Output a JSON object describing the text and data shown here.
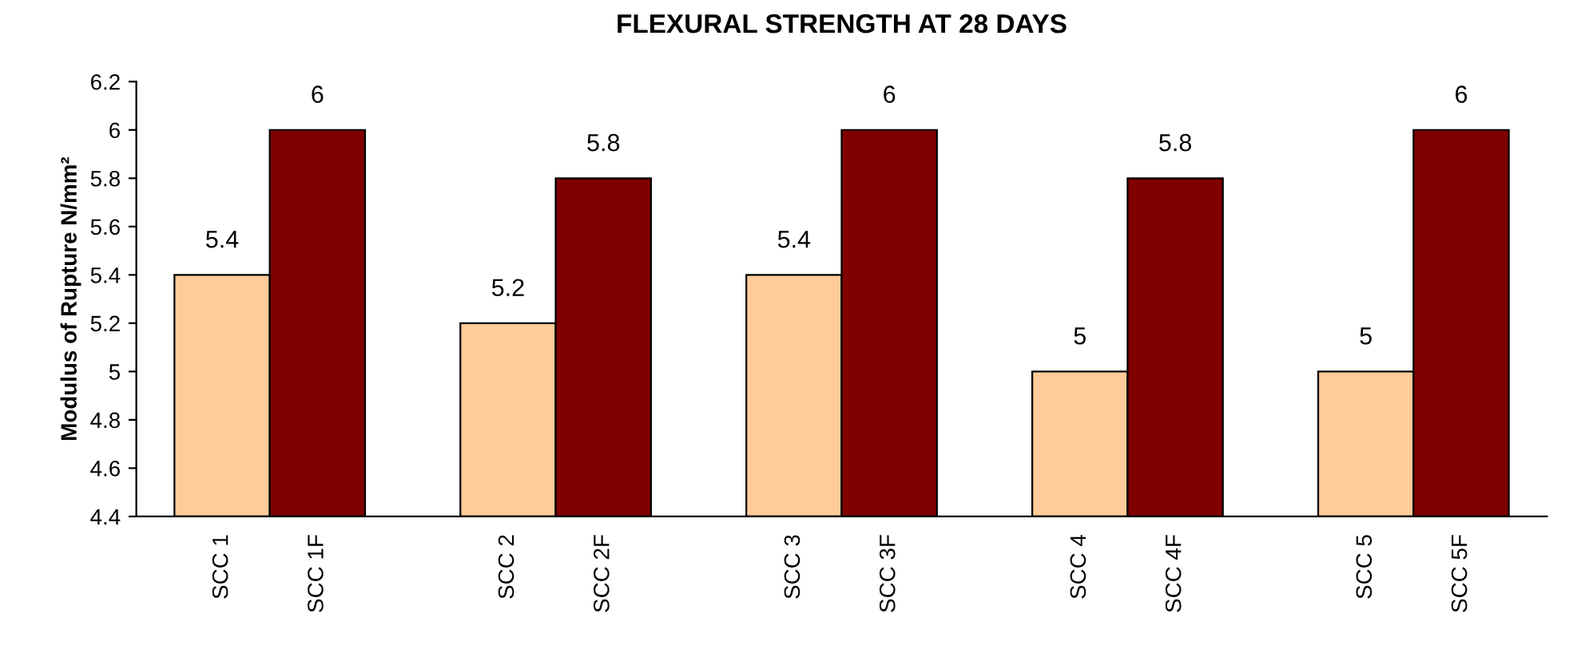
{
  "chart_data": {
    "type": "bar",
    "title": "FLEXURAL STRENGTH AT 28 DAYS",
    "ylabel": "Modulus of Rupture N/mm²",
    "categories": [
      "SCC 1",
      "SCC 1F",
      null,
      "SCC 2",
      "SCC 2F",
      null,
      "SCC 3",
      "SCC 3F",
      null,
      "SCC 4",
      "SCC 4F",
      null,
      "SCC 5",
      "SCC 5F"
    ],
    "values": [
      5.4,
      6,
      null,
      5.2,
      5.8,
      null,
      5.4,
      6,
      null,
      5,
      5.8,
      null,
      5,
      6
    ],
    "colors": [
      "#ffcc99",
      "#800000",
      null,
      "#ffcc99",
      "#800000",
      null,
      "#ffcc99",
      "#800000",
      null,
      "#ffcc99",
      "#800000",
      null,
      "#ffcc99",
      "#800000"
    ],
    "ylim": [
      4.4,
      6.2
    ],
    "yticks": [
      4.4,
      4.6,
      4.8,
      5,
      5.2,
      5.4,
      5.6,
      5.8,
      6,
      6.2
    ],
    "data_labels": true
  }
}
